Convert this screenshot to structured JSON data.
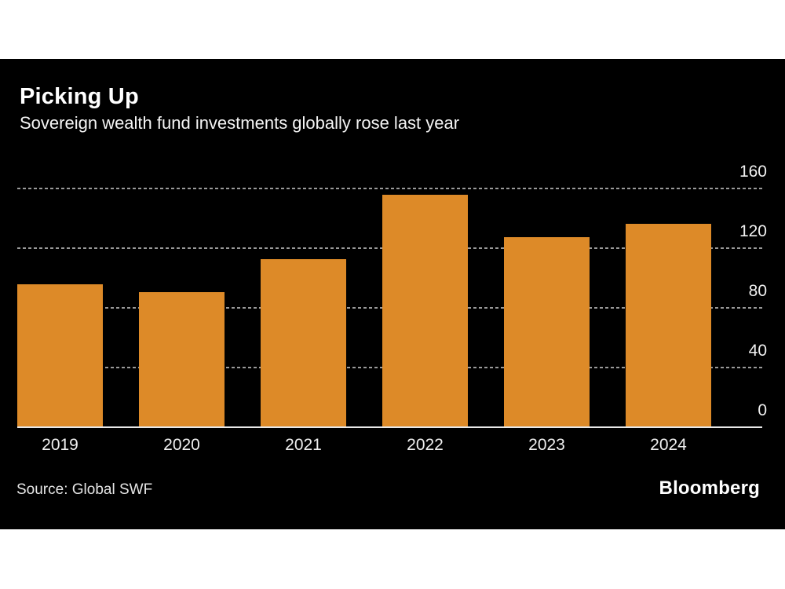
{
  "header": {
    "title": "Picking Up",
    "subtitle": "Sovereign wealth fund investments globally rose last year"
  },
  "footer": {
    "source": "Source: Global SWF",
    "brand": "Bloomberg"
  },
  "colors": {
    "card_background": "#000000",
    "page_background": "#ffffff",
    "bar": "#dd8a28",
    "gridline": "#9a9a9a",
    "baseline": "#e8e8e8",
    "text": "#ffffff"
  },
  "chart_data": {
    "type": "bar",
    "title": "Picking Up",
    "subtitle": "Sovereign wealth fund investments globally rose last year",
    "categories": [
      "2019",
      "2020",
      "2021",
      "2022",
      "2023",
      "2024"
    ],
    "values": [
      95,
      90,
      112,
      155,
      127,
      136
    ],
    "xlabel": "",
    "ylabel": "",
    "ylim": [
      0,
      160
    ],
    "yticks": [
      0,
      40,
      80,
      120,
      160
    ],
    "grid": "horizontal-dotted",
    "ytick_side": "right",
    "legend": "none",
    "bar_color": "#dd8a28",
    "source": "Global SWF"
  }
}
